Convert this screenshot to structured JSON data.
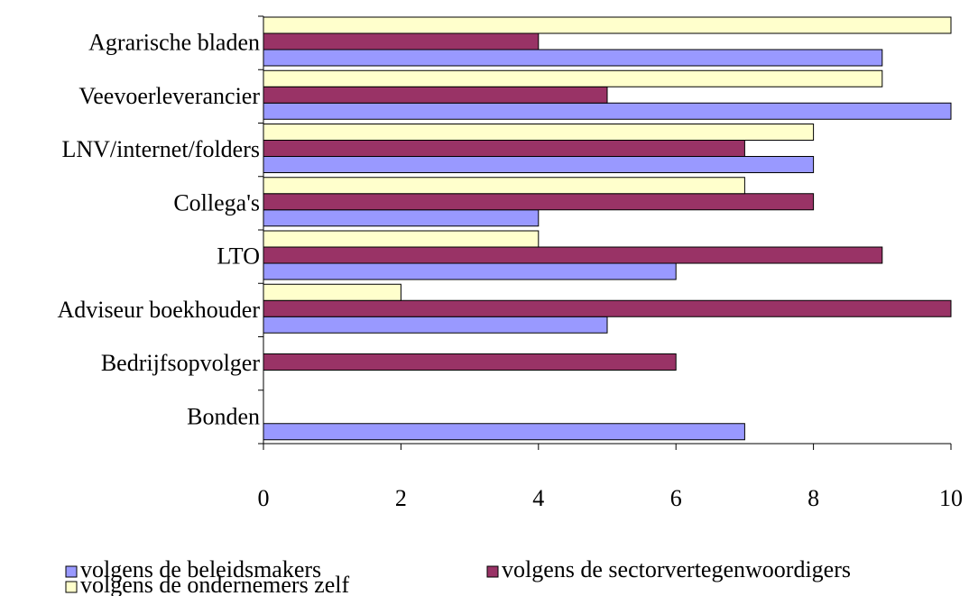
{
  "chart_data": {
    "type": "hbar",
    "categories": [
      "Agrarische bladen",
      "Veevoerleverancier",
      "LNV/internet/folders",
      "Collega's",
      "LTO",
      "Adviseur boekhouder",
      "Bedrijfsopvolger",
      "Bonden"
    ],
    "series": [
      {
        "name": "volgens de beleidsmakers",
        "color": "#9999ff",
        "values": [
          9,
          10,
          8,
          4,
          6,
          5,
          null,
          7
        ]
      },
      {
        "name": "volgens de sectorvertegenwoordigers",
        "color": "#993366",
        "values": [
          4,
          5,
          7,
          8,
          9,
          10,
          6,
          null
        ]
      },
      {
        "name": "volgens de ondernemers zelf",
        "color": "#ffffcc",
        "values": [
          10,
          9,
          8,
          7,
          4,
          2,
          null,
          null
        ]
      }
    ],
    "xlim": [
      0,
      10
    ],
    "xticks": [
      0,
      2,
      4,
      6,
      8,
      10
    ],
    "grid": false,
    "legend": "bottom"
  }
}
